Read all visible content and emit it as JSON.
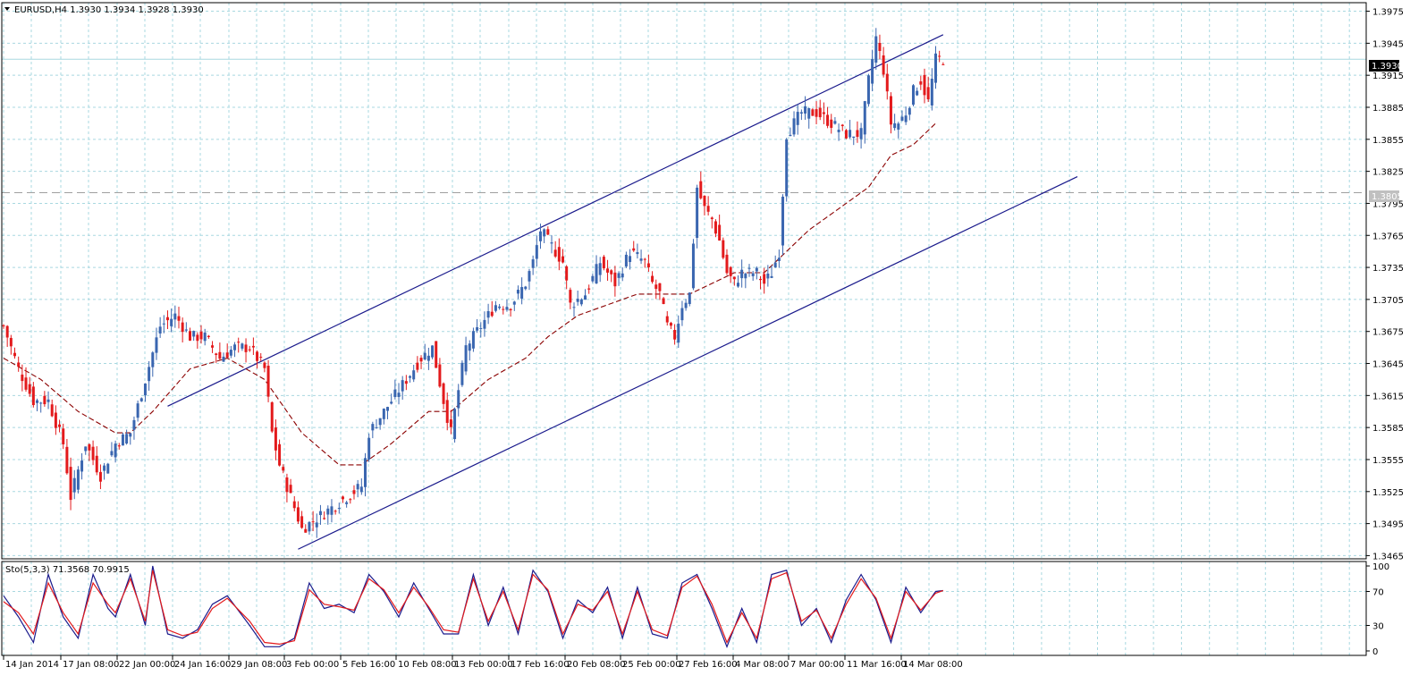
{
  "window": {
    "main_title": "EURUSD,H4  1.3930 1.3934 1.3928 1.3930",
    "indicator_title": "Sto(5,3,3) 71.3568 70.9915",
    "current_price_label": "1.3930",
    "level_label": "1.3805"
  },
  "colors": {
    "background": "#ffffff",
    "grid": "#a9d8e0",
    "bull_candle": "#3a66b0",
    "bear_candle": "#e31a1c",
    "ma_line": "#8b0000",
    "channel": "#1a1a8c",
    "stoch_main": "#1a1a8c",
    "stoch_signal": "#e31a1c",
    "level_line": "#a0a0a0"
  },
  "icons": {
    "title_marker": "triangle-down-icon"
  },
  "chart_data": [
    {
      "type": "candlestick",
      "symbol": "EURUSD",
      "timeframe": "H4",
      "title": "EURUSD,H4  1.3930 1.3934 1.3928 1.3930",
      "ohlc": {
        "open": 1.393,
        "high": 1.3934,
        "low": 1.3928,
        "close": 1.393
      },
      "y_ticks": [
        "1.3975",
        "1.3945",
        "1.3915",
        "1.3885",
        "1.3855",
        "1.3825",
        "1.3795",
        "1.3765",
        "1.3735",
        "1.3705",
        "1.3675",
        "1.3645",
        "1.3615",
        "1.3585",
        "1.3555",
        "1.3525",
        "1.3495",
        "1.3465"
      ],
      "ylim": [
        1.3462,
        1.3983
      ],
      "x_ticks": [
        "14 Jan 2014",
        "17 Jan 08:00",
        "22 Jan 00:00",
        "24 Jan 16:00",
        "29 Jan 08:00",
        "3 Feb 00:00",
        "5 Feb 16:00",
        "10 Feb 08:00",
        "13 Feb 00:00",
        "17 Feb 16:00",
        "20 Feb 08:00",
        "25 Feb 00:00",
        "27 Feb 16:00",
        "4 Mar 08:00",
        "7 Mar 00:00",
        "11 Mar 16:00",
        "14 Mar 08:00"
      ],
      "current_price": 1.393,
      "horizontal_level": 1.3805,
      "anchor_closes": [
        [
          0,
          1.368
        ],
        [
          4,
          1.364
        ],
        [
          8,
          1.361
        ],
        [
          12,
          1.361
        ],
        [
          16,
          1.357
        ],
        [
          18,
          1.352
        ],
        [
          22,
          1.357
        ],
        [
          26,
          1.354
        ],
        [
          30,
          1.357
        ],
        [
          34,
          1.358
        ],
        [
          38,
          1.363
        ],
        [
          42,
          1.368
        ],
        [
          46,
          1.369
        ],
        [
          50,
          1.367
        ],
        [
          54,
          1.367
        ],
        [
          58,
          1.365
        ],
        [
          62,
          1.366
        ],
        [
          66,
          1.366
        ],
        [
          70,
          1.364
        ],
        [
          72,
          1.358
        ],
        [
          74,
          1.355
        ],
        [
          78,
          1.351
        ],
        [
          80,
          1.349
        ],
        [
          84,
          1.35
        ],
        [
          88,
          1.351
        ],
        [
          92,
          1.352
        ],
        [
          96,
          1.353
        ],
        [
          98,
          1.358
        ],
        [
          100,
          1.359
        ],
        [
          104,
          1.361
        ],
        [
          108,
          1.363
        ],
        [
          112,
          1.365
        ],
        [
          115,
          1.366
        ],
        [
          118,
          1.361
        ],
        [
          120,
          1.358
        ],
        [
          124,
          1.366
        ],
        [
          128,
          1.368
        ],
        [
          132,
          1.37
        ],
        [
          136,
          1.37
        ],
        [
          140,
          1.372
        ],
        [
          142,
          1.374
        ],
        [
          144,
          1.377
        ],
        [
          146,
          1.376
        ],
        [
          150,
          1.374
        ],
        [
          152,
          1.37
        ],
        [
          156,
          1.371
        ],
        [
          160,
          1.374
        ],
        [
          164,
          1.372
        ],
        [
          168,
          1.375
        ],
        [
          172,
          1.374
        ],
        [
          174,
          1.372
        ],
        [
          176,
          1.371
        ],
        [
          178,
          1.368
        ],
        [
          180,
          1.367
        ],
        [
          182,
          1.37
        ],
        [
          184,
          1.371
        ],
        [
          186,
          1.381
        ],
        [
          188,
          1.379
        ],
        [
          190,
          1.378
        ],
        [
          192,
          1.376
        ],
        [
          194,
          1.373
        ],
        [
          196,
          1.372
        ],
        [
          198,
          1.373
        ],
        [
          202,
          1.373
        ],
        [
          204,
          1.372
        ],
        [
          206,
          1.373
        ],
        [
          208,
          1.375
        ],
        [
          210,
          1.386
        ],
        [
          212,
          1.387
        ],
        [
          214,
          1.388
        ],
        [
          218,
          1.388
        ],
        [
          222,
          1.387
        ],
        [
          226,
          1.386
        ],
        [
          228,
          1.386
        ],
        [
          230,
          1.386
        ],
        [
          232,
          1.391
        ],
        [
          234,
          1.395
        ],
        [
          236,
          1.392
        ],
        [
          238,
          1.387
        ],
        [
          240,
          1.387
        ],
        [
          242,
          1.388
        ],
        [
          244,
          1.39
        ],
        [
          246,
          1.391
        ],
        [
          248,
          1.389
        ],
        [
          250,
          1.393
        ],
        [
          252,
          1.393
        ]
      ],
      "moving_average": {
        "style": "dashed",
        "points": [
          [
            0,
            1.365
          ],
          [
            10,
            1.363
          ],
          [
            20,
            1.36
          ],
          [
            30,
            1.358
          ],
          [
            34,
            1.358
          ],
          [
            40,
            1.36
          ],
          [
            50,
            1.364
          ],
          [
            60,
            1.365
          ],
          [
            70,
            1.363
          ],
          [
            80,
            1.358
          ],
          [
            90,
            1.355
          ],
          [
            96,
            1.355
          ],
          [
            104,
            1.357
          ],
          [
            114,
            1.36
          ],
          [
            120,
            1.36
          ],
          [
            130,
            1.363
          ],
          [
            140,
            1.365
          ],
          [
            146,
            1.367
          ],
          [
            154,
            1.369
          ],
          [
            162,
            1.37
          ],
          [
            170,
            1.371
          ],
          [
            176,
            1.371
          ],
          [
            184,
            1.371
          ],
          [
            190,
            1.372
          ],
          [
            196,
            1.373
          ],
          [
            204,
            1.373
          ],
          [
            210,
            1.375
          ],
          [
            216,
            1.377
          ],
          [
            224,
            1.379
          ],
          [
            232,
            1.381
          ],
          [
            238,
            1.384
          ],
          [
            244,
            1.385
          ],
          [
            250,
            1.387
          ]
        ]
      },
      "channel_lines": [
        {
          "name": "upper",
          "from": [
            44,
            1.3605
          ],
          "to": [
            252,
            1.3953
          ]
        },
        {
          "name": "lower",
          "from": [
            79,
            1.3471
          ],
          "to": [
            288,
            1.382
          ]
        }
      ]
    },
    {
      "type": "line",
      "title": "Sto(5,3,3) 71.3568 70.9915",
      "indicator": "Stochastic Oscillator",
      "params": [
        5,
        3,
        3
      ],
      "values": {
        "main": 71.3568,
        "signal": 70.9915
      },
      "y_ticks": [
        "100",
        "70",
        "30",
        "0"
      ],
      "ylim": [
        0,
        100
      ],
      "levels": [
        30,
        70
      ],
      "series": [
        {
          "role": "main",
          "points": [
            [
              0,
              65
            ],
            [
              4,
              40
            ],
            [
              8,
              10
            ],
            [
              12,
              90
            ],
            [
              16,
              40
            ],
            [
              20,
              15
            ],
            [
              24,
              90
            ],
            [
              28,
              50
            ],
            [
              30,
              40
            ],
            [
              34,
              90
            ],
            [
              38,
              30
            ],
            [
              40,
              100
            ],
            [
              44,
              20
            ],
            [
              48,
              15
            ],
            [
              52,
              25
            ],
            [
              56,
              55
            ],
            [
              60,
              65
            ],
            [
              66,
              30
            ],
            [
              70,
              5
            ],
            [
              74,
              5
            ],
            [
              78,
              15
            ],
            [
              82,
              80
            ],
            [
              86,
              50
            ],
            [
              90,
              55
            ],
            [
              94,
              45
            ],
            [
              98,
              90
            ],
            [
              102,
              70
            ],
            [
              106,
              40
            ],
            [
              110,
              80
            ],
            [
              114,
              50
            ],
            [
              118,
              20
            ],
            [
              122,
              20
            ],
            [
              126,
              90
            ],
            [
              130,
              30
            ],
            [
              134,
              75
            ],
            [
              138,
              20
            ],
            [
              142,
              95
            ],
            [
              146,
              70
            ],
            [
              150,
              15
            ],
            [
              154,
              60
            ],
            [
              158,
              45
            ],
            [
              162,
              75
            ],
            [
              166,
              15
            ],
            [
              170,
              75
            ],
            [
              174,
              20
            ],
            [
              178,
              15
            ],
            [
              182,
              80
            ],
            [
              186,
              90
            ],
            [
              190,
              50
            ],
            [
              194,
              5
            ],
            [
              198,
              50
            ],
            [
              202,
              10
            ],
            [
              206,
              90
            ],
            [
              210,
              95
            ],
            [
              214,
              30
            ],
            [
              218,
              50
            ],
            [
              222,
              10
            ],
            [
              226,
              60
            ],
            [
              230,
              90
            ],
            [
              234,
              60
            ],
            [
              238,
              10
            ],
            [
              242,
              75
            ],
            [
              246,
              45
            ],
            [
              250,
              70
            ],
            [
              252,
              71
            ]
          ]
        },
        {
          "role": "signal",
          "points": [
            [
              0,
              58
            ],
            [
              4,
              45
            ],
            [
              8,
              20
            ],
            [
              12,
              80
            ],
            [
              16,
              45
            ],
            [
              20,
              20
            ],
            [
              24,
              80
            ],
            [
              28,
              55
            ],
            [
              30,
              45
            ],
            [
              34,
              85
            ],
            [
              38,
              35
            ],
            [
              40,
              95
            ],
            [
              44,
              25
            ],
            [
              48,
              18
            ],
            [
              52,
              22
            ],
            [
              56,
              50
            ],
            [
              60,
              62
            ],
            [
              66,
              35
            ],
            [
              70,
              10
            ],
            [
              74,
              8
            ],
            [
              78,
              12
            ],
            [
              82,
              72
            ],
            [
              86,
              55
            ],
            [
              90,
              52
            ],
            [
              94,
              48
            ],
            [
              98,
              85
            ],
            [
              102,
              72
            ],
            [
              106,
              45
            ],
            [
              110,
              75
            ],
            [
              114,
              52
            ],
            [
              118,
              25
            ],
            [
              122,
              22
            ],
            [
              126,
              85
            ],
            [
              130,
              35
            ],
            [
              134,
              70
            ],
            [
              138,
              25
            ],
            [
              142,
              90
            ],
            [
              146,
              72
            ],
            [
              150,
              20
            ],
            [
              154,
              55
            ],
            [
              158,
              48
            ],
            [
              162,
              70
            ],
            [
              166,
              20
            ],
            [
              170,
              70
            ],
            [
              174,
              25
            ],
            [
              178,
              18
            ],
            [
              182,
              75
            ],
            [
              186,
              88
            ],
            [
              190,
              55
            ],
            [
              194,
              10
            ],
            [
              198,
              45
            ],
            [
              202,
              15
            ],
            [
              206,
              85
            ],
            [
              210,
              92
            ],
            [
              214,
              35
            ],
            [
              218,
              48
            ],
            [
              222,
              15
            ],
            [
              226,
              55
            ],
            [
              230,
              85
            ],
            [
              234,
              62
            ],
            [
              238,
              15
            ],
            [
              242,
              70
            ],
            [
              246,
              48
            ],
            [
              250,
              68
            ],
            [
              252,
              71
            ]
          ]
        }
      ]
    }
  ]
}
